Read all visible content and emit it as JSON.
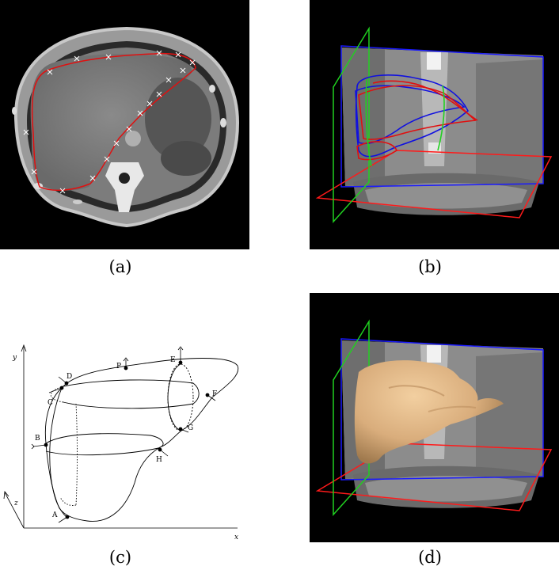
{
  "captions": {
    "a": "(a)",
    "b": "(b)",
    "c": "(c)",
    "d": "(d)"
  },
  "diagram_c": {
    "axes": {
      "x": "x",
      "y": "y",
      "z": "z"
    },
    "points": [
      "A",
      "B",
      "C",
      "D",
      "E",
      "F",
      "G",
      "H",
      "P"
    ]
  },
  "colors": {
    "contour_red": "#e01010",
    "contour_blue": "#1010e0",
    "contour_green": "#20d020",
    "liver_surface": "#d9ad7c",
    "background": "#000000"
  }
}
